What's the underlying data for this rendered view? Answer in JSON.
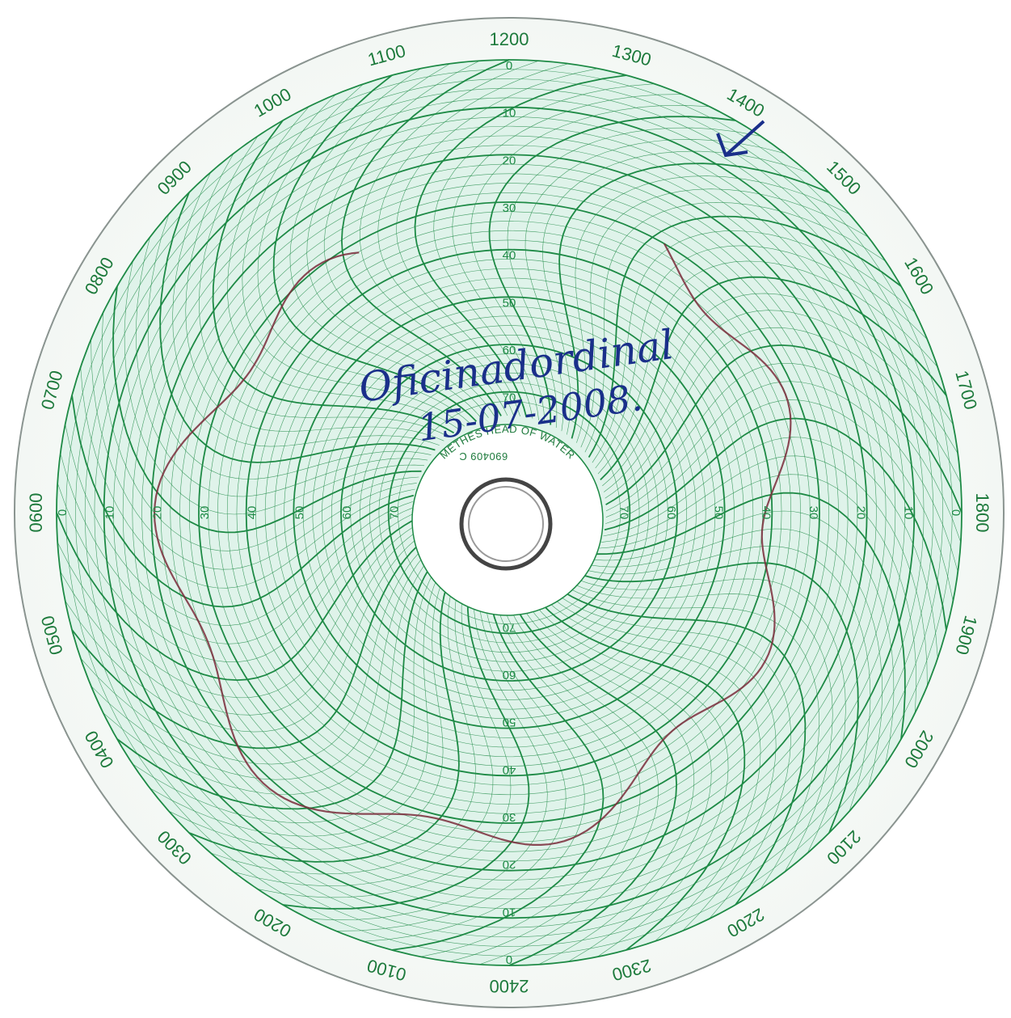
{
  "chart": {
    "hour_labels": [
      "1200",
      "1300",
      "1400",
      "1500",
      "1600",
      "1700",
      "1800",
      "1900",
      "2000",
      "2100",
      "2200",
      "2300",
      "2400",
      "0100",
      "0200",
      "0300",
      "0400",
      "0500",
      "0600",
      "0700",
      "0800",
      "0900",
      "1000",
      "1100"
    ],
    "scale_labels": [
      "0",
      "10",
      "20",
      "30",
      "40",
      "50",
      "60",
      "70"
    ],
    "center_text": "METHES HEAD OF WATER",
    "center_code": "690409 C",
    "handwriting": {
      "line1": "Oficinadordinal",
      "line2": "15-07-2008."
    },
    "colors": {
      "grid": "#1d8a45",
      "paper": "#dff3ea",
      "ink_trace": "#7a2a3a",
      "ink_pen": "#1a2f8a"
    }
  }
}
